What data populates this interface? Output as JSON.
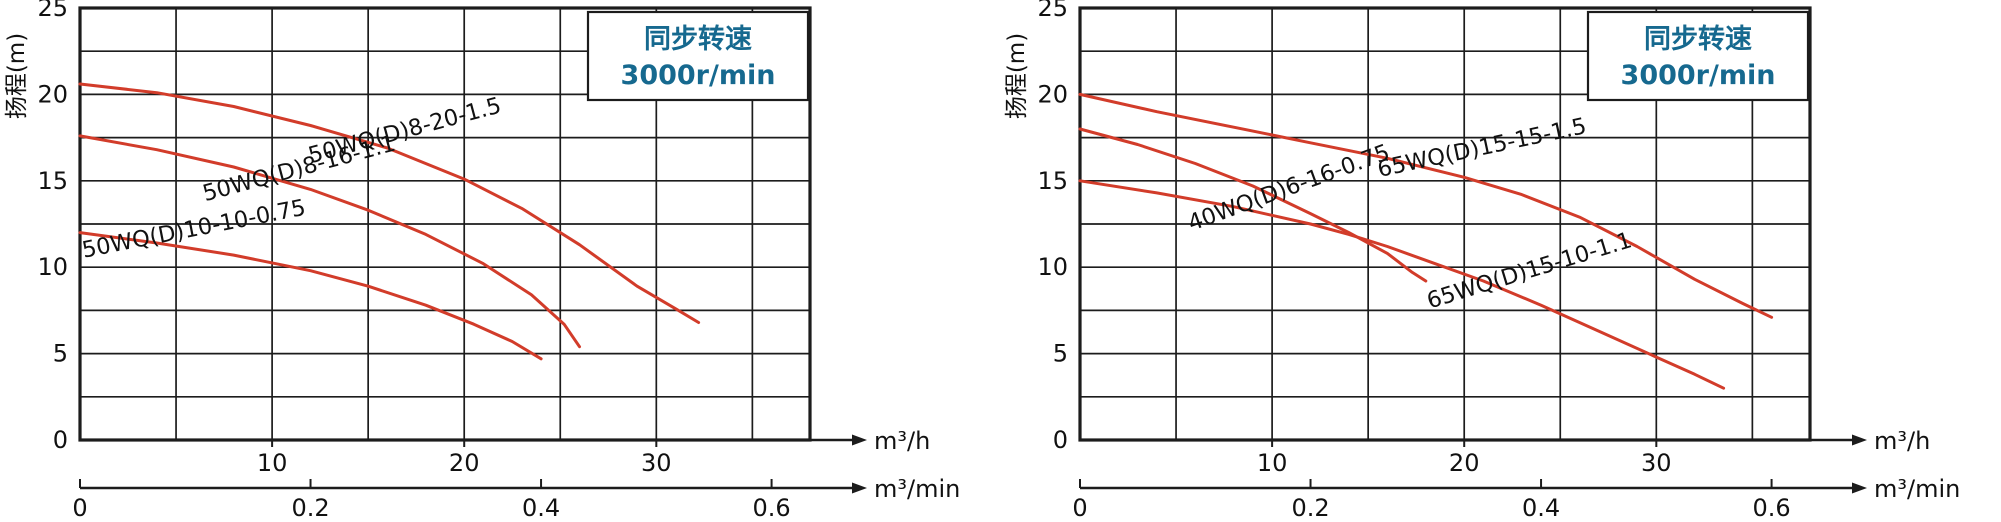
{
  "page": {
    "background": "#ffffff"
  },
  "colors": {
    "curve": "#d23c2a",
    "legend_text": "#16698f",
    "axis": "#1c1c1c"
  },
  "chart_data": [
    {
      "type": "line",
      "ylabel": "扬程(m)",
      "legend": {
        "line1": "同步转速",
        "line2": "3000r/min"
      },
      "axes": {
        "y_ticks": [
          0,
          5,
          10,
          15,
          20,
          25
        ],
        "x_ticks_primary": [
          10,
          20,
          30
        ],
        "x_unit_primary": "m³/h",
        "x_ticks_secondary": [
          0,
          0.2,
          0.4,
          0.6
        ],
        "x_unit_secondary": "m³/min",
        "x_range_m3h": [
          0,
          38
        ],
        "y_range_m": [
          0,
          25
        ],
        "grid_x_step": 5,
        "grid_y_step": 2.5
      },
      "series": [
        {
          "name": "50WQ(D)8-20-1.5",
          "points": [
            [
              0,
              20.6
            ],
            [
              4,
              20.1
            ],
            [
              8,
              19.3
            ],
            [
              12,
              18.2
            ],
            [
              16,
              16.9
            ],
            [
              20,
              15.1
            ],
            [
              23,
              13.4
            ],
            [
              26,
              11.3
            ],
            [
              29,
              8.9
            ],
            [
              31,
              7.6
            ],
            [
              32.2,
              6.8
            ]
          ],
          "label_anchor": [
            17,
            17.5
          ],
          "label_angle": -15
        },
        {
          "name": "50WQ(D)8-16-1.1",
          "points": [
            [
              0,
              17.6
            ],
            [
              4,
              16.8
            ],
            [
              8,
              15.8
            ],
            [
              12,
              14.5
            ],
            [
              15,
              13.3
            ],
            [
              18,
              11.9
            ],
            [
              21,
              10.2
            ],
            [
              23.5,
              8.4
            ],
            [
              25.2,
              6.7
            ],
            [
              26,
              5.4
            ]
          ],
          "label_anchor": [
            11.5,
            15.3
          ],
          "label_angle": -15
        },
        {
          "name": "50WQ(D)10-10-0.75",
          "points": [
            [
              0,
              12
            ],
            [
              4,
              11.4
            ],
            [
              8,
              10.7
            ],
            [
              12,
              9.8
            ],
            [
              15,
              8.9
            ],
            [
              18,
              7.8
            ],
            [
              20.5,
              6.7
            ],
            [
              22.5,
              5.7
            ],
            [
              24,
              4.7
            ]
          ],
          "label_anchor": [
            6,
            11.8
          ],
          "label_angle": -11
        }
      ]
    },
    {
      "type": "line",
      "ylabel": "扬程(m)",
      "legend": {
        "line1": "同步转速",
        "line2": "3000r/min"
      },
      "axes": {
        "y_ticks": [
          0,
          5,
          10,
          15,
          20,
          25
        ],
        "x_ticks_primary": [
          10,
          20,
          30
        ],
        "x_unit_primary": "m³/h",
        "x_ticks_secondary": [
          0,
          0.2,
          0.4,
          0.6
        ],
        "x_unit_secondary": "m³/min",
        "x_range_m3h": [
          0,
          38
        ],
        "y_range_m": [
          0,
          25
        ],
        "grid_x_step": 5,
        "grid_y_step": 2.5
      },
      "series": [
        {
          "name": "65WQ(D)15-15-1.5",
          "points": [
            [
              0,
              20
            ],
            [
              4,
              19
            ],
            [
              8,
              18.1
            ],
            [
              12,
              17.2
            ],
            [
              16,
              16.3
            ],
            [
              20,
              15.2
            ],
            [
              23,
              14.2
            ],
            [
              26,
              12.9
            ],
            [
              29,
              11.2
            ],
            [
              32,
              9.3
            ],
            [
              34.5,
              7.9
            ],
            [
              36,
              7.1
            ]
          ],
          "label_anchor": [
            21,
            16.5
          ],
          "label_angle": -12
        },
        {
          "name": "40WQ(D)6-16-0.75",
          "points": [
            [
              0,
              18
            ],
            [
              3,
              17.1
            ],
            [
              6,
              16
            ],
            [
              9,
              14.7
            ],
            [
              12,
              13.1
            ],
            [
              14,
              12
            ],
            [
              16,
              10.8
            ],
            [
              17.3,
              9.7
            ],
            [
              18,
              9.2
            ]
          ],
          "label_anchor": [
            11,
            14.2
          ],
          "label_angle": -20
        },
        {
          "name": "65WQ(D)15-10-1.1",
          "points": [
            [
              0,
              15
            ],
            [
              4,
              14.3
            ],
            [
              8,
              13.5
            ],
            [
              12,
              12.5
            ],
            [
              14,
              11.9
            ],
            [
              16,
              11.2
            ],
            [
              18,
              10.4
            ],
            [
              21,
              9.2
            ],
            [
              24,
              7.8
            ],
            [
              27,
              6.3
            ],
            [
              30,
              4.8
            ],
            [
              32,
              3.8
            ],
            [
              33.5,
              3
            ]
          ],
          "label_anchor": [
            23.5,
            9.4
          ],
          "label_angle": -17
        }
      ]
    }
  ]
}
